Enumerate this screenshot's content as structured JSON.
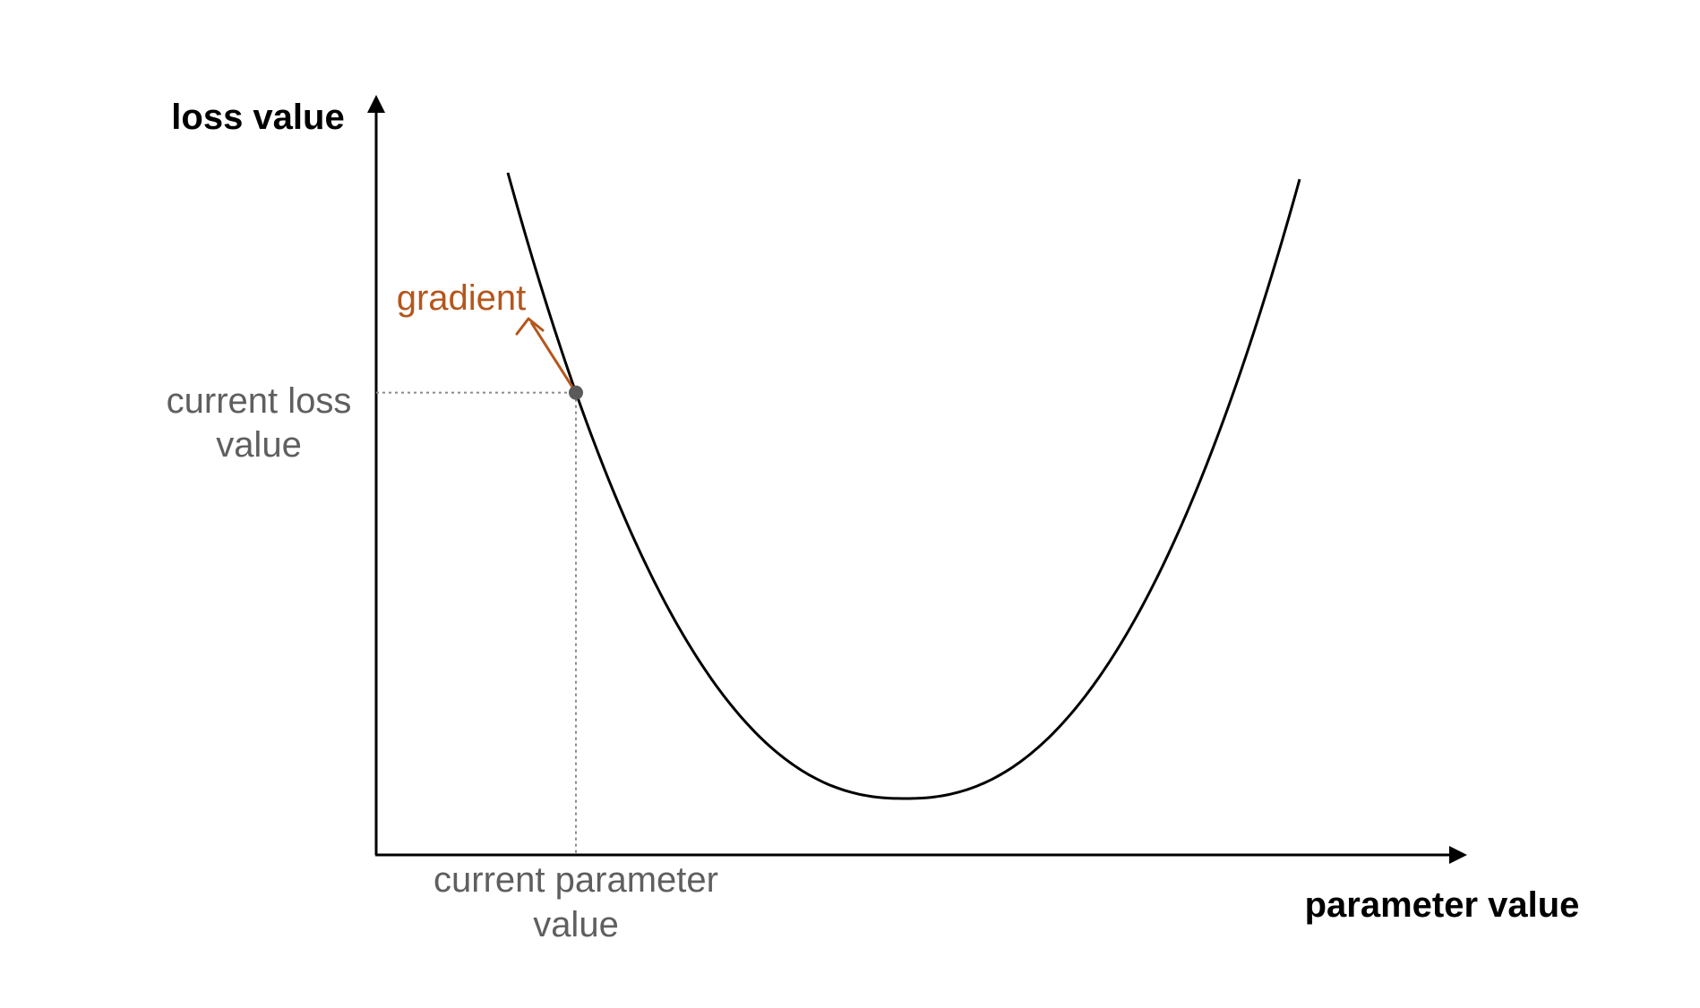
{
  "axes": {
    "y_title": "loss value",
    "x_title": "parameter value"
  },
  "annotations": {
    "current_loss_line1": "current loss",
    "current_loss_line2": "value",
    "current_param_line1": "current parameter",
    "current_param_line2": "value",
    "gradient": "gradient"
  },
  "colors": {
    "axis": "#000000",
    "curve": "#000000",
    "gradient": "#b5561c",
    "guide": "#8a8a8a",
    "point": "#5a5a5a",
    "label_grey": "#5f5f5f"
  },
  "icons": {
    "current_point": "filled-circle",
    "gradient_arrow": "open-arrowhead"
  }
}
